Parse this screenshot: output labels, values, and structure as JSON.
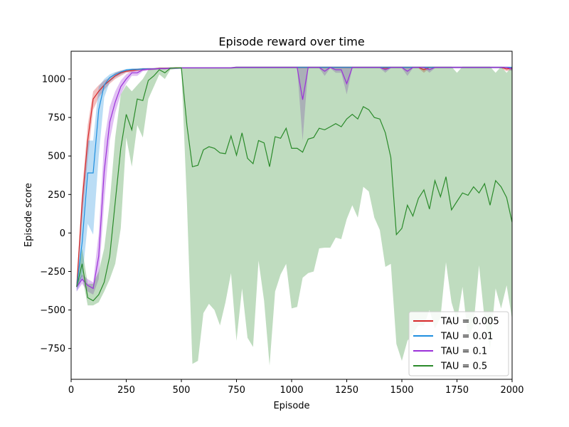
{
  "chart_data": {
    "type": "line",
    "title": "Episode reward over time",
    "xlabel": "Episode",
    "ylabel": "Episode score",
    "xlim": [
      0,
      2000
    ],
    "ylim": [
      -950,
      1180
    ],
    "xticks": [
      0,
      250,
      500,
      750,
      1000,
      1250,
      1500,
      1750,
      2000
    ],
    "yticks": [
      -750,
      -500,
      -250,
      0,
      250,
      500,
      750,
      1000
    ],
    "grid": false,
    "legend_position": "bottom-right",
    "x": [
      25,
      50,
      75,
      100,
      125,
      150,
      175,
      200,
      225,
      250,
      275,
      300,
      325,
      350,
      375,
      400,
      425,
      450,
      475,
      500,
      525,
      550,
      575,
      600,
      625,
      650,
      675,
      700,
      725,
      750,
      775,
      800,
      825,
      850,
      875,
      900,
      925,
      950,
      975,
      1000,
      1025,
      1050,
      1075,
      1100,
      1125,
      1150,
      1175,
      1200,
      1225,
      1250,
      1275,
      1300,
      1325,
      1350,
      1375,
      1400,
      1425,
      1450,
      1475,
      1500,
      1525,
      1550,
      1575,
      1600,
      1625,
      1650,
      1675,
      1700,
      1725,
      1750,
      1775,
      1800,
      1825,
      1850,
      1875,
      1900,
      1925,
      1950,
      1975,
      2000
    ],
    "series": [
      {
        "name": "TAU = 0.005",
        "color": "#d62728",
        "values": [
          -350,
          200,
          600,
          870,
          920,
          960,
          990,
          1020,
          1040,
          1050,
          1055,
          1060,
          1065,
          1065,
          1065,
          1070,
          1070,
          1070,
          1072,
          1072,
          1072,
          1072,
          1072,
          1072,
          1072,
          1072,
          1072,
          1072,
          1072,
          1075,
          1075,
          1075,
          1075,
          1075,
          1075,
          1075,
          1075,
          1075,
          1075,
          1075,
          1075,
          1075,
          1075,
          1075,
          1075,
          1075,
          1075,
          1075,
          1075,
          1075,
          1075,
          1075,
          1075,
          1075,
          1075,
          1075,
          1070,
          1075,
          1075,
          1075,
          1075,
          1075,
          1075,
          1060,
          1075,
          1075,
          1075,
          1075,
          1075,
          1075,
          1075,
          1075,
          1075,
          1075,
          1075,
          1075,
          1075,
          1075,
          1065,
          1070
        ],
        "lower": [
          -380,
          80,
          480,
          800,
          880,
          930,
          970,
          1000,
          1020,
          1040,
          1045,
          1050,
          1055,
          1060,
          1060,
          1065,
          1065,
          1065,
          1068,
          1068,
          1068,
          1068,
          1068,
          1068,
          1068,
          1068,
          1068,
          1068,
          1068,
          1070,
          1070,
          1070,
          1070,
          1070,
          1070,
          1070,
          1070,
          1070,
          1070,
          1070,
          1070,
          1070,
          1070,
          1070,
          1070,
          1070,
          1070,
          1070,
          1070,
          1070,
          1070,
          1070,
          1070,
          1070,
          1070,
          1070,
          1060,
          1070,
          1070,
          1070,
          1070,
          1070,
          1070,
          1040,
          1070,
          1070,
          1070,
          1070,
          1070,
          1070,
          1070,
          1070,
          1070,
          1070,
          1070,
          1070,
          1070,
          1070,
          1050,
          1060
        ],
        "upper": [
          -320,
          280,
          700,
          920,
          960,
          990,
          1010,
          1040,
          1055,
          1060,
          1065,
          1068,
          1070,
          1070,
          1070,
          1075,
          1075,
          1075,
          1076,
          1076,
          1076,
          1076,
          1076,
          1076,
          1076,
          1076,
          1076,
          1076,
          1076,
          1080,
          1080,
          1080,
          1080,
          1080,
          1080,
          1080,
          1080,
          1080,
          1080,
          1080,
          1080,
          1080,
          1080,
          1080,
          1080,
          1080,
          1080,
          1080,
          1080,
          1080,
          1080,
          1080,
          1080,
          1080,
          1080,
          1080,
          1080,
          1080,
          1080,
          1080,
          1080,
          1080,
          1080,
          1080,
          1080,
          1080,
          1080,
          1080,
          1080,
          1080,
          1080,
          1080,
          1080,
          1080,
          1080,
          1080,
          1080,
          1080,
          1078,
          1078
        ]
      },
      {
        "name": "TAU = 0.01",
        "color": "#1f8fdf",
        "values": [
          -350,
          -60,
          390,
          390,
          800,
          960,
          1010,
          1030,
          1045,
          1058,
          1062,
          1062,
          1065,
          1065,
          1066,
          1068,
          1068,
          1070,
          1070,
          1072,
          1072,
          1072,
          1072,
          1072,
          1072,
          1072,
          1072,
          1072,
          1072,
          1075,
          1075,
          1075,
          1075,
          1075,
          1075,
          1075,
          1075,
          1075,
          1075,
          1075,
          1075,
          1075,
          1075,
          1075,
          1075,
          1075,
          1075,
          1075,
          1075,
          1075,
          1075,
          1075,
          1075,
          1075,
          1075,
          1075,
          1075,
          1075,
          1075,
          1075,
          1075,
          1075,
          1075,
          1075,
          1075,
          1075,
          1075,
          1075,
          1075,
          1075,
          1075,
          1075,
          1075,
          1075,
          1075,
          1075,
          1075,
          1075,
          1075,
          1075
        ],
        "lower": [
          -380,
          -300,
          60,
          -10,
          500,
          880,
          980,
          1010,
          1030,
          1045,
          1055,
          1055,
          1060,
          1060,
          1062,
          1064,
          1064,
          1066,
          1066,
          1068,
          1068,
          1068,
          1068,
          1068,
          1068,
          1068,
          1068,
          1068,
          1068,
          1070,
          1070,
          1070,
          1070,
          1070,
          1070,
          1070,
          1070,
          1070,
          1070,
          1070,
          1070,
          1070,
          1070,
          1070,
          1070,
          1070,
          1070,
          1070,
          1070,
          1070,
          1070,
          1070,
          1070,
          1070,
          1070,
          1070,
          1070,
          1070,
          1070,
          1070,
          1070,
          1070,
          1070,
          1070,
          1070,
          1070,
          1070,
          1070,
          1070,
          1070,
          1070,
          1070,
          1070,
          1070,
          1070,
          1070,
          1070,
          1070,
          1070,
          1070
        ],
        "upper": [
          -320,
          200,
          600,
          600,
          950,
          1000,
          1030,
          1045,
          1055,
          1065,
          1068,
          1068,
          1070,
          1070,
          1070,
          1072,
          1072,
          1074,
          1074,
          1076,
          1076,
          1076,
          1076,
          1076,
          1076,
          1076,
          1076,
          1076,
          1076,
          1080,
          1080,
          1080,
          1080,
          1080,
          1080,
          1080,
          1080,
          1080,
          1080,
          1080,
          1080,
          1080,
          1080,
          1080,
          1080,
          1080,
          1080,
          1080,
          1080,
          1080,
          1080,
          1080,
          1080,
          1080,
          1080,
          1080,
          1080,
          1080,
          1080,
          1080,
          1080,
          1080,
          1080,
          1080,
          1080,
          1080,
          1080,
          1080,
          1080,
          1080,
          1080,
          1080,
          1080,
          1080,
          1080,
          1080,
          1080,
          1080,
          1080,
          1080
        ]
      },
      {
        "name": "TAU = 0.1",
        "color": "#9b30d9",
        "values": [
          -350,
          -300,
          -340,
          -360,
          -150,
          400,
          720,
          850,
          950,
          1000,
          1040,
          1040,
          1060,
          1063,
          1065,
          1067,
          1067,
          1070,
          1070,
          1072,
          1072,
          1072,
          1072,
          1072,
          1072,
          1072,
          1072,
          1072,
          1072,
          1075,
          1075,
          1075,
          1075,
          1075,
          1075,
          1075,
          1075,
          1075,
          1075,
          1075,
          1075,
          865,
          1075,
          1075,
          1075,
          1050,
          1075,
          1060,
          1060,
          970,
          1075,
          1075,
          1075,
          1075,
          1075,
          1075,
          1060,
          1075,
          1075,
          1075,
          1050,
          1075,
          1075,
          1075,
          1060,
          1075,
          1075,
          1075,
          1075,
          1075,
          1075,
          1075,
          1075,
          1075,
          1075,
          1075,
          1075,
          1075,
          1075,
          1065
        ],
        "lower": [
          -380,
          -330,
          -380,
          -400,
          -300,
          200,
          600,
          780,
          900,
          970,
          1020,
          1020,
          1050,
          1055,
          1058,
          1062,
          1062,
          1065,
          1065,
          1068,
          1068,
          1068,
          1068,
          1068,
          1068,
          1068,
          1068,
          1068,
          1068,
          1070,
          1070,
          1070,
          1070,
          1070,
          1070,
          1070,
          1070,
          1070,
          1070,
          1070,
          1070,
          600,
          1070,
          1070,
          1070,
          1020,
          1070,
          1040,
          1040,
          900,
          1070,
          1070,
          1070,
          1070,
          1070,
          1070,
          1040,
          1070,
          1070,
          1070,
          1020,
          1070,
          1070,
          1070,
          1040,
          1070,
          1070,
          1070,
          1070,
          1070,
          1070,
          1070,
          1070,
          1070,
          1070,
          1070,
          1070,
          1070,
          1070,
          1050
        ],
        "upper": [
          -320,
          -270,
          -300,
          -320,
          0,
          600,
          820,
          920,
          990,
          1030,
          1055,
          1055,
          1068,
          1070,
          1070,
          1072,
          1072,
          1074,
          1074,
          1076,
          1076,
          1076,
          1076,
          1076,
          1076,
          1076,
          1076,
          1076,
          1076,
          1080,
          1080,
          1080,
          1080,
          1080,
          1080,
          1080,
          1080,
          1080,
          1080,
          1080,
          1080,
          1080,
          1080,
          1080,
          1080,
          1080,
          1080,
          1080,
          1080,
          1080,
          1080,
          1080,
          1080,
          1080,
          1080,
          1080,
          1080,
          1080,
          1080,
          1080,
          1080,
          1080,
          1080,
          1080,
          1080,
          1080,
          1080,
          1080,
          1080,
          1080,
          1080,
          1080,
          1080,
          1080,
          1080,
          1080,
          1080,
          1080,
          1080,
          1078
        ]
      },
      {
        "name": "TAU = 0.5",
        "color": "#2a8a2a",
        "values": [
          -350,
          -200,
          -420,
          -440,
          -400,
          -320,
          -150,
          200,
          550,
          770,
          670,
          870,
          860,
          990,
          1020,
          1060,
          1040,
          1070,
          1072,
          1072,
          700,
          430,
          440,
          540,
          560,
          550,
          520,
          515,
          630,
          505,
          650,
          485,
          450,
          600,
          585,
          430,
          625,
          615,
          680,
          550,
          550,
          525,
          610,
          620,
          680,
          670,
          690,
          710,
          690,
          740,
          770,
          740,
          820,
          800,
          750,
          740,
          650,
          490,
          -10,
          30,
          180,
          110,
          225,
          280,
          155,
          340,
          235,
          365,
          150,
          205,
          260,
          245,
          300,
          260,
          320,
          180,
          340,
          300,
          230,
          70
        ],
        "lower": [
          -360,
          -280,
          -470,
          -470,
          -450,
          -380,
          -300,
          -200,
          30,
          620,
          430,
          700,
          620,
          870,
          950,
          1030,
          1000,
          1060,
          1065,
          1065,
          200,
          -850,
          -830,
          -520,
          -460,
          -500,
          -600,
          -450,
          -260,
          -700,
          -360,
          -680,
          -740,
          -180,
          -440,
          -860,
          -380,
          -270,
          -200,
          -490,
          -480,
          -290,
          -260,
          -250,
          -100,
          -95,
          -95,
          -30,
          -40,
          90,
          180,
          100,
          300,
          270,
          100,
          20,
          -220,
          -200,
          -720,
          -830,
          -700,
          -650,
          -600,
          -600,
          -500,
          -620,
          -550,
          -190,
          -450,
          -570,
          -350,
          -680,
          -600,
          -210,
          -560,
          -750,
          -360,
          -490,
          -340,
          -560
        ],
        "upper": [
          -320,
          -100,
          -330,
          -330,
          -250,
          -100,
          200,
          620,
          900,
          960,
          920,
          960,
          1000,
          1060,
          1070,
          1072,
          1072,
          1076,
          1076,
          1076,
          1076,
          1076,
          1076,
          1076,
          1076,
          1076,
          1076,
          1076,
          1076,
          1080,
          1080,
          1080,
          1080,
          1080,
          1080,
          1080,
          1080,
          1080,
          1080,
          1080,
          1080,
          1080,
          1080,
          1080,
          1080,
          1080,
          1080,
          1080,
          1080,
          1080,
          1080,
          1080,
          1080,
          1080,
          1080,
          1080,
          1080,
          1080,
          1080,
          1080,
          1080,
          1080,
          1080,
          1080,
          1080,
          1080,
          1080,
          1080,
          1080,
          1040,
          1080,
          1080,
          1080,
          1080,
          1080,
          1080,
          1040,
          1080,
          1040,
          1080
        ]
      }
    ]
  }
}
